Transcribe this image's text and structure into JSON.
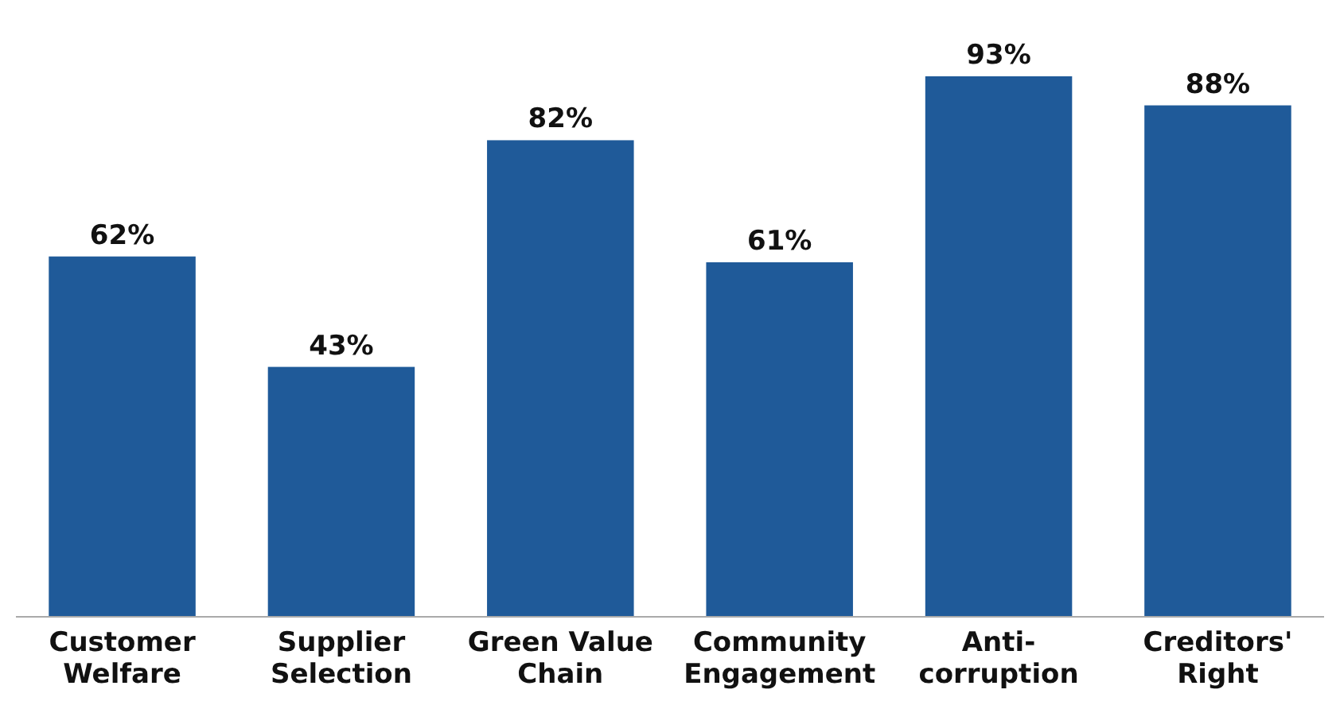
{
  "chart_data": {
    "type": "bar",
    "categories": [
      "Customer Welfare",
      "Supplier Selection",
      "Green Value Chain",
      "Community Engagement",
      "Anti-corruption",
      "Creditors' Right"
    ],
    "values": [
      62,
      43,
      82,
      61,
      93,
      88
    ],
    "value_labels": [
      "62%",
      "43%",
      "82%",
      "61%",
      "93%",
      "88%"
    ],
    "color": "#1f5a99"
  }
}
